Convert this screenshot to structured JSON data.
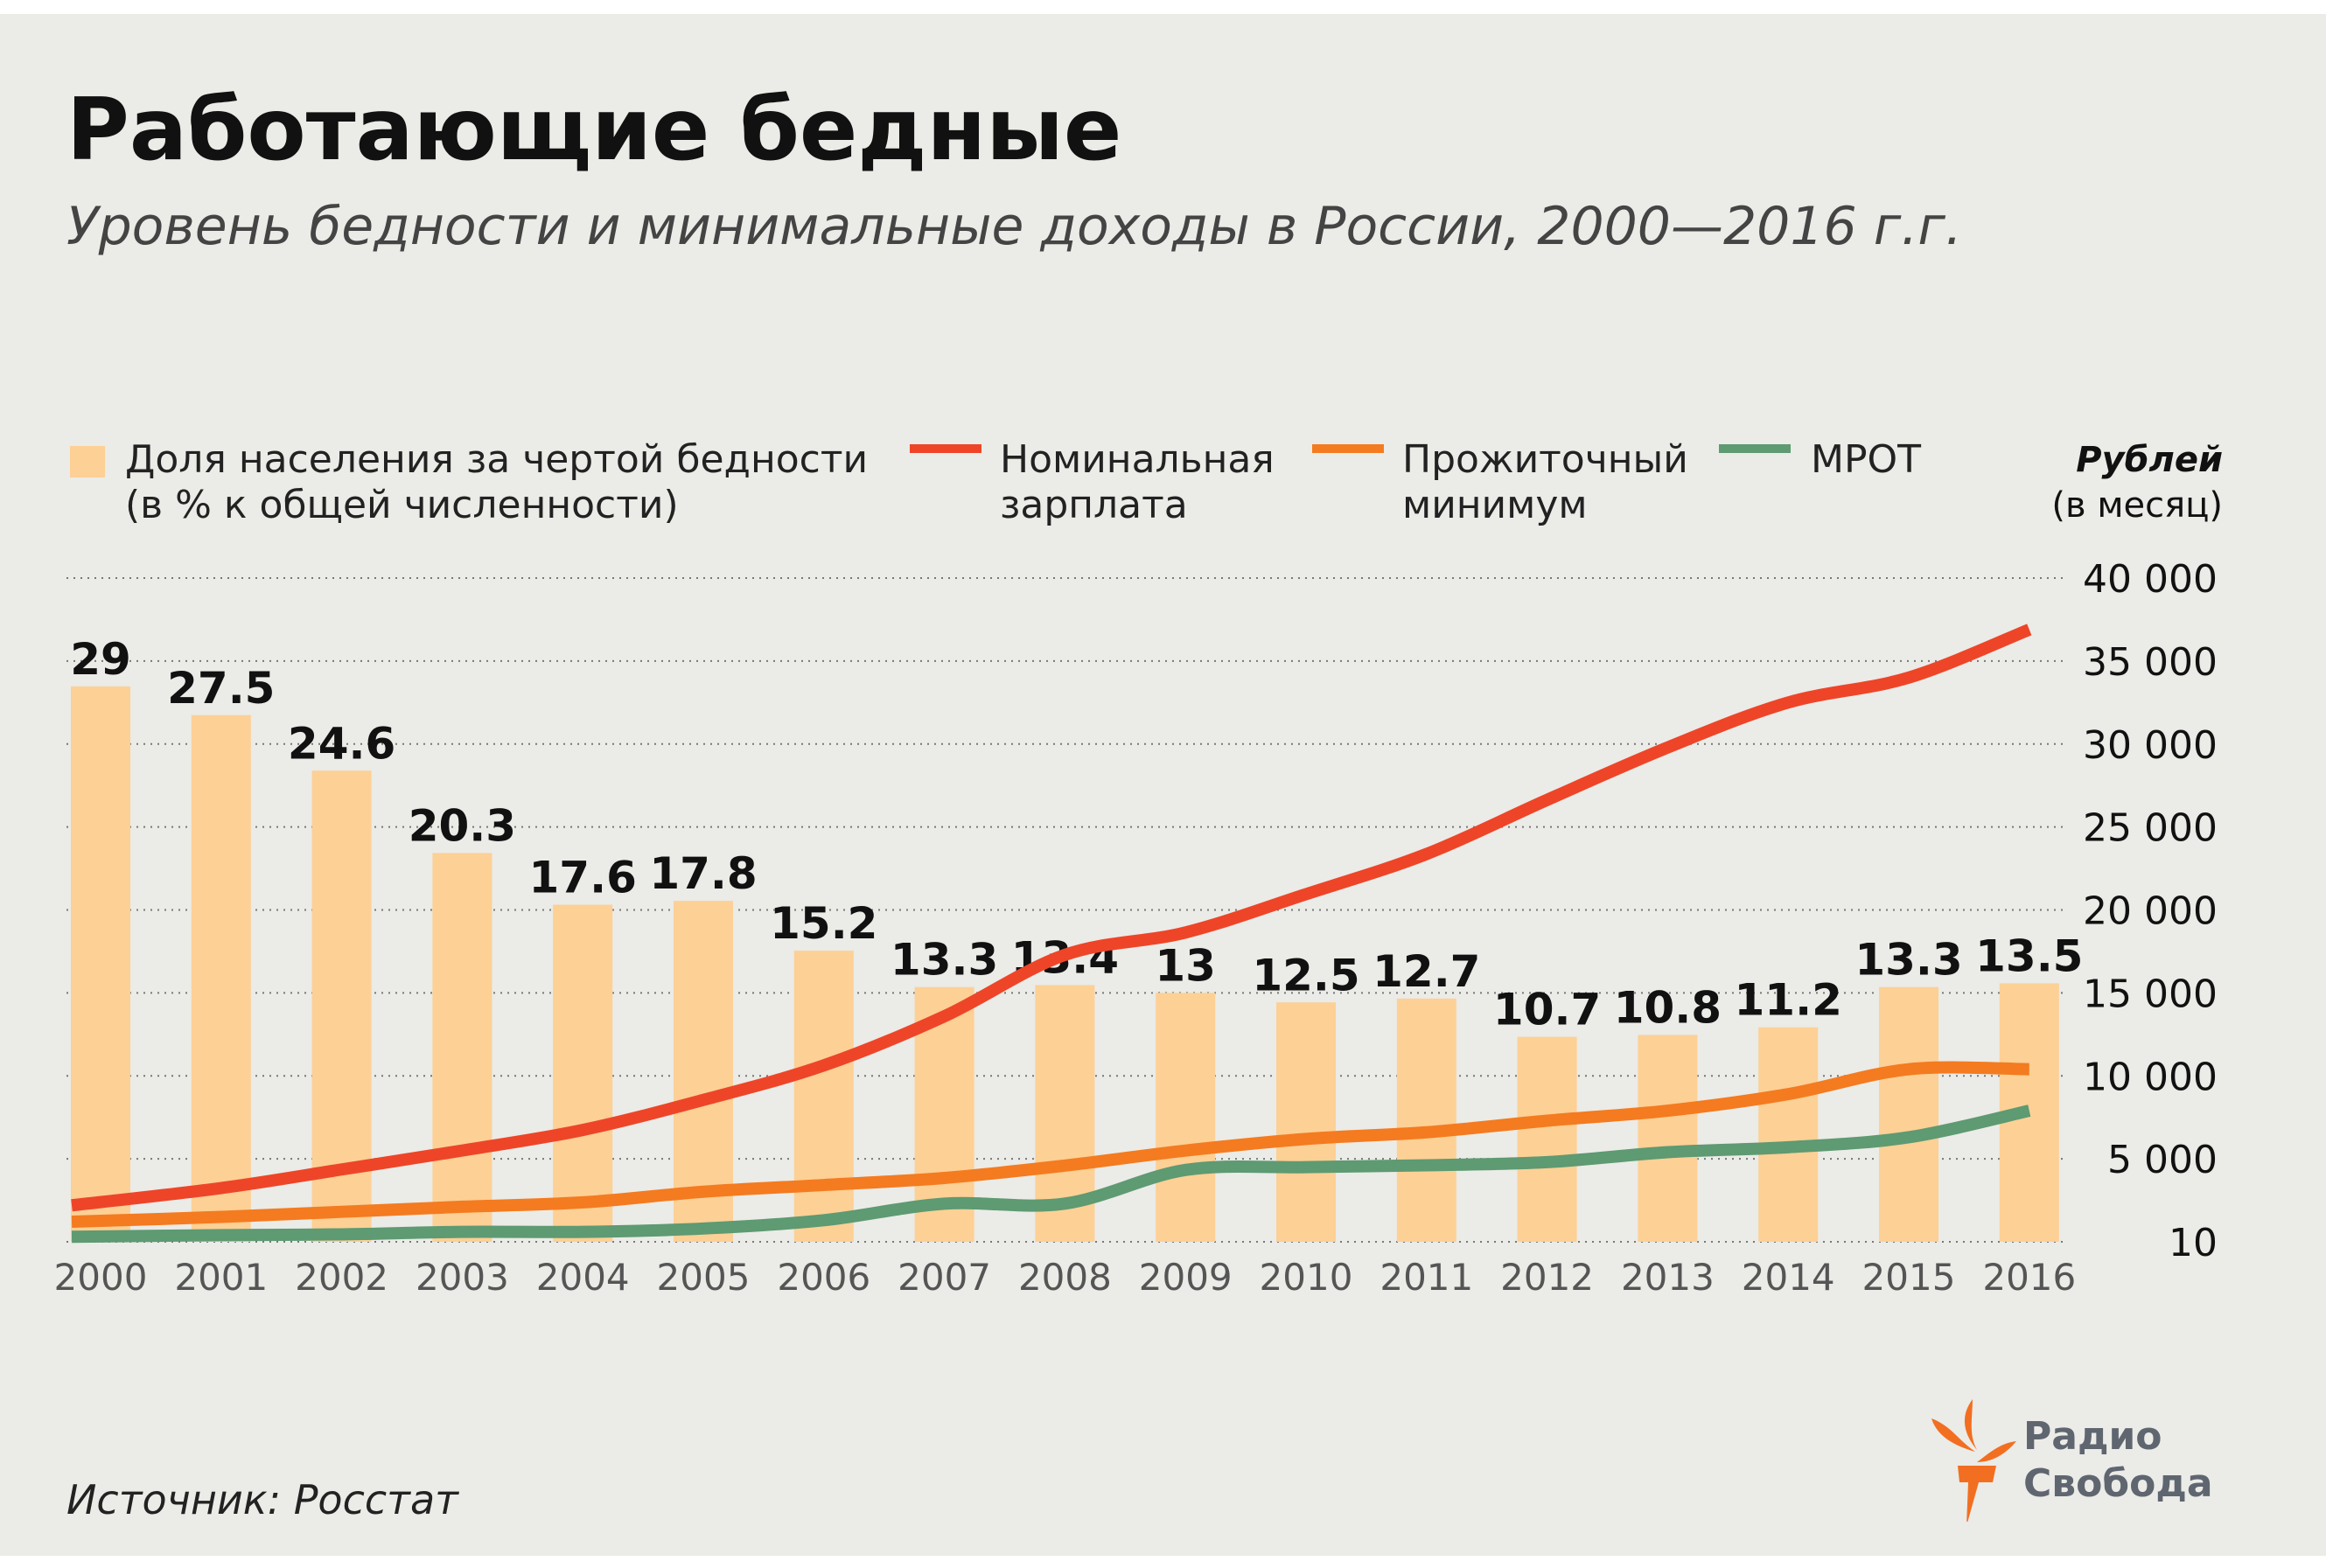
{
  "title": "Работающие бедные",
  "subtitle": "Уровень бедности и минимальные доходы в России, 2000—2016 г.г.",
  "source": "Источник: Росстат",
  "logo": {
    "line1": "Радио",
    "line2": "Свобода",
    "icon": "torch-icon",
    "color": "#f26f21",
    "text_color": "#5f6670"
  },
  "legend": {
    "bars": {
      "line1": "Доля населения за чертой бедности",
      "line2": "(в % к общей численности)",
      "color": "#fdd095"
    },
    "wage": {
      "line1": "Номинальная",
      "line2": "зарплата",
      "color": "#ee4528"
    },
    "subsistence": {
      "line1": "Прожиточный",
      "line2": "минимум",
      "color": "#f47b20"
    },
    "mrot": {
      "line1": "МРОТ",
      "color": "#5e9a72"
    }
  },
  "unit": {
    "line1": "Рублей",
    "line2": "(в месяц)"
  },
  "chart_data": {
    "type": "bar+line",
    "categories": [
      "2000",
      "2001",
      "2002",
      "2003",
      "2004",
      "2005",
      "2006",
      "2007",
      "2008",
      "2009",
      "2010",
      "2011",
      "2012",
      "2013",
      "2014",
      "2015",
      "2016"
    ],
    "bars": {
      "name": "Доля населения за чертой бедности (в % к общей численности)",
      "values": [
        29,
        27.5,
        24.6,
        20.3,
        17.6,
        17.8,
        15.2,
        13.3,
        13.4,
        13,
        12.5,
        12.7,
        10.7,
        10.8,
        11.2,
        13.3,
        13.5
      ],
      "labels": [
        "29",
        "27.5",
        "24.6",
        "20.3",
        "17.6",
        "17.8",
        "15.2",
        "13.3",
        "13.4",
        "13",
        "12.5",
        "12.7",
        "10.7",
        "10.8",
        "11.2",
        "13.3",
        "13.5"
      ]
    },
    "series": [
      {
        "name": "Номинальная зарплата",
        "color": "#ee4528",
        "values": [
          2200,
          3240,
          4360,
          5500,
          6740,
          8550,
          10630,
          13590,
          17290,
          18640,
          20950,
          23370,
          26630,
          29790,
          32500,
          34000,
          36900
        ]
      },
      {
        "name": "Прожиточный минимум",
        "color": "#f47b20",
        "values": [
          1210,
          1500,
          1808,
          2112,
          2376,
          3018,
          3422,
          3847,
          4593,
          5497,
          6200,
          6600,
          7300,
          7900,
          8900,
          10400,
          10400
        ]
      },
      {
        "name": "МРОТ",
        "color": "#5e9a72",
        "values": [
          300,
          400,
          450,
          600,
          600,
          800,
          1300,
          2300,
          2300,
          4330,
          4500,
          4611,
          4800,
          5400,
          5700,
          6300,
          7900
        ]
      }
    ],
    "y_right": {
      "ticks": [
        10,
        5000,
        10000,
        15000,
        20000,
        25000,
        30000,
        35000,
        40000
      ],
      "tick_labels": [
        "10",
        "5 000",
        "10 000",
        "15 000",
        "20 000",
        "25 000",
        "30 000",
        "35 000",
        "40 000"
      ],
      "range": [
        0,
        40000
      ]
    },
    "grid": "dotted horizontal"
  }
}
